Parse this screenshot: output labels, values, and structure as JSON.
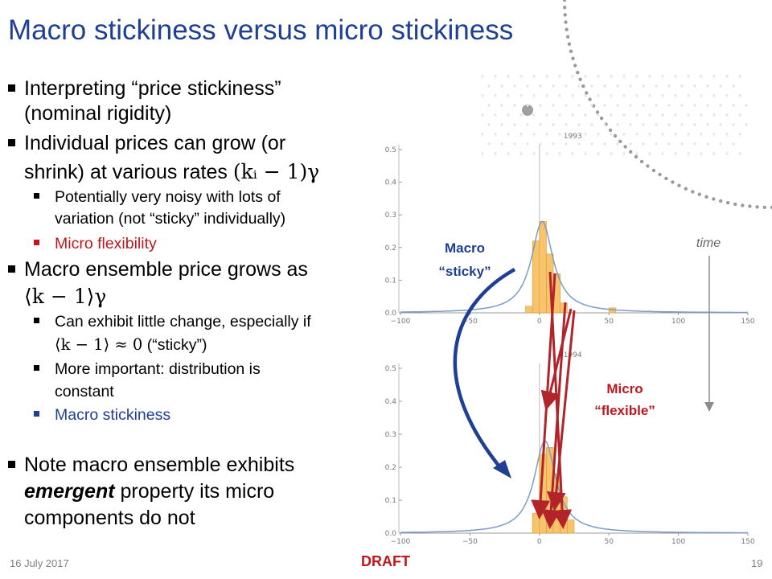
{
  "slide": {
    "title": "Macro stickiness versus micro stickiness",
    "footer": {
      "date": "16 July 2017",
      "status": "DRAFT",
      "page": "19"
    }
  },
  "bullets": {
    "b1_line1": "Interpreting “price stickiness”",
    "b1_line2": "(nominal rigidity)",
    "b2_line1": "Individual prices can grow (or",
    "b2_line2_text": "shrink) at various rates",
    "b2_line2_math": "(kᵢ − 1)γ",
    "b2_sub1_line1": "Potentially very noisy with lots of",
    "b2_sub1_line2": "variation (not “sticky” individually)",
    "b2_sub2": "Micro flexibility",
    "b3_line1": "Macro ensemble price grows as",
    "b3_line2_math": "⟨k − 1⟩γ",
    "b3_sub1_line1": "Can exhibit little change, especially if",
    "b3_sub1_line2_math": "⟨k − 1⟩ ≈ 0",
    "b3_sub1_line2_text": "(“sticky”)",
    "b3_sub2_line1": "More important: distribution is",
    "b3_sub2_line2": "constant",
    "b3_sub3": "Macro stickiness",
    "b4_line1": "Note macro ensemble exhibits",
    "b4_line2_em": "emergent",
    "b4_line2_rest": "property its micro",
    "b4_line3": "components do not"
  },
  "annotations": {
    "macro_line1": "Macro",
    "macro_line2": "“sticky”",
    "micro_line1": "Micro",
    "micro_line2": "“flexible”",
    "time": "time"
  },
  "colors": {
    "title": "#1f3f95",
    "micro_red": "#c0171c",
    "macro_blue": "#1f3f95",
    "bars": "#f7c46b",
    "curve": "#7a9cc6"
  },
  "chart_data": [
    {
      "type": "bar",
      "title": "1993",
      "xlim": [
        -100,
        150
      ],
      "ylim": [
        0,
        0.5
      ],
      "xticks": [
        -100,
        -50,
        0,
        50,
        100,
        150
      ],
      "yticks": [
        0.0,
        0.1,
        0.2,
        0.3,
        0.4,
        0.5
      ],
      "bins": [
        {
          "x0": -10,
          "x1": -5,
          "value": 0.02
        },
        {
          "x0": -5,
          "x1": 0,
          "value": 0.22
        },
        {
          "x0": 0,
          "x1": 5,
          "value": 0.28
        },
        {
          "x0": 5,
          "x1": 10,
          "value": 0.18
        },
        {
          "x0": 10,
          "x1": 15,
          "value": 0.12
        },
        {
          "x0": 15,
          "x1": 20,
          "value": 0.03
        },
        {
          "x0": 50,
          "x1": 55,
          "value": 0.015
        }
      ],
      "fit_curve": {
        "shape": "cauchy",
        "center": 2,
        "peak": 0.28
      }
    },
    {
      "type": "bar",
      "title": "1994",
      "xlim": [
        -100,
        150
      ],
      "ylim": [
        0,
        0.5
      ],
      "xticks": [
        -100,
        -50,
        0,
        50,
        100,
        150
      ],
      "yticks": [
        0.0,
        0.1,
        0.2,
        0.3,
        0.4,
        0.5
      ],
      "bins": [
        {
          "x0": -5,
          "x1": 0,
          "value": 0.06
        },
        {
          "x0": 0,
          "x1": 5,
          "value": 0.24
        },
        {
          "x0": 5,
          "x1": 10,
          "value": 0.26
        },
        {
          "x0": 10,
          "x1": 15,
          "value": 0.18
        },
        {
          "x0": 15,
          "x1": 20,
          "value": 0.11
        },
        {
          "x0": 20,
          "x1": 25,
          "value": 0.04
        }
      ],
      "fit_curve": {
        "shape": "cauchy",
        "center": 4,
        "peak": 0.28
      }
    }
  ]
}
